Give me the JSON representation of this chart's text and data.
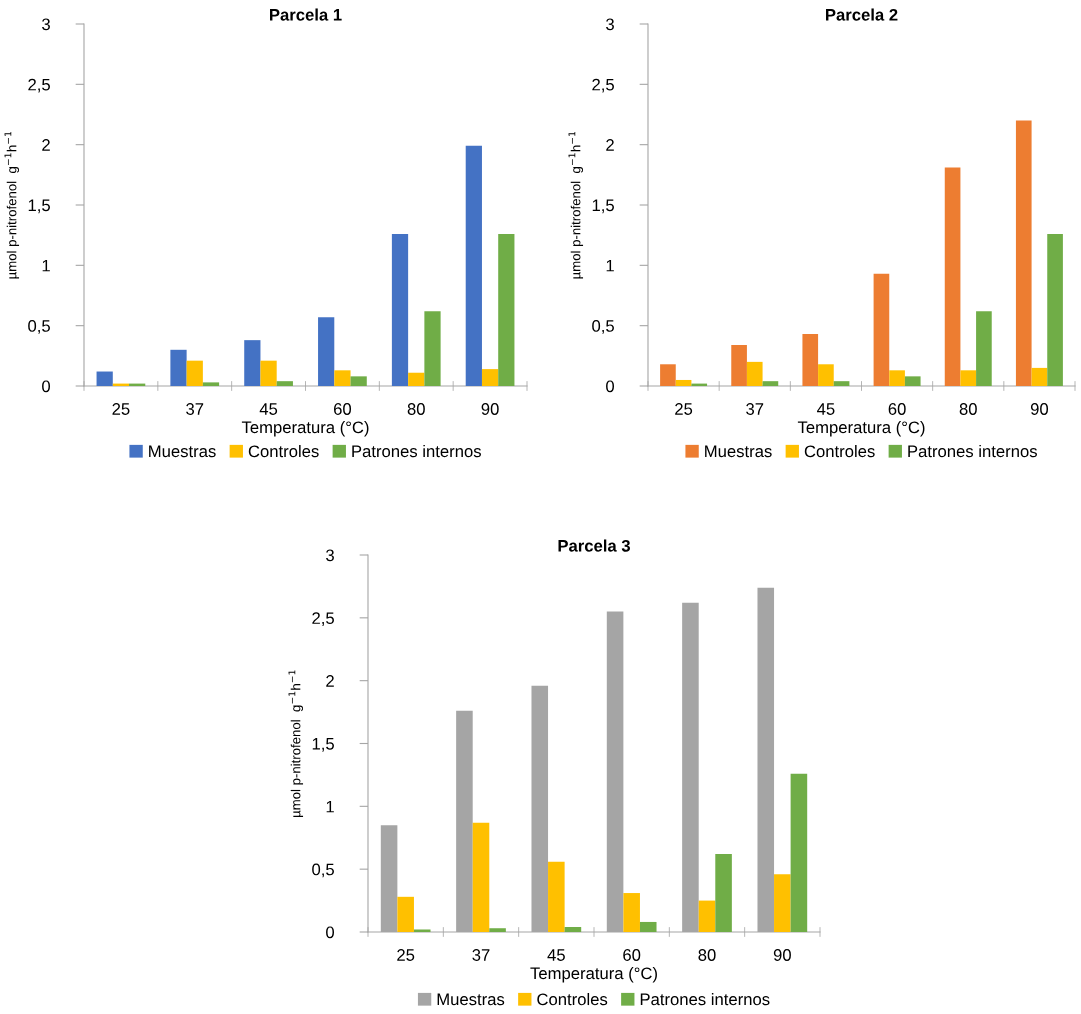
{
  "chart_data": [
    {
      "type": "bar",
      "title": "Parcela 1",
      "xlabel": "Temperatura (°C)",
      "ylabel": "µmol p-nitrofenol  g$^{−1}$h$^{−1}$",
      "categories": [
        "25",
        "37",
        "45",
        "60",
        "80",
        "90"
      ],
      "ylim": [
        0,
        3
      ],
      "yticks": [
        0,
        {
          "value": 0.5,
          "label": "0,5"
        },
        1,
        {
          "value": 1.5,
          "label": "1,5"
        },
        2,
        {
          "value": 2.5,
          "label": "2,5"
        },
        3
      ],
      "grid": false,
      "legend": "bottom",
      "series": [
        {
          "name": "Muestras",
          "color": "#4472c4",
          "values": [
            0.12,
            0.3,
            0.38,
            0.57,
            1.26,
            1.99
          ]
        },
        {
          "name": "Controles",
          "color": "#ffc000",
          "values": [
            0.02,
            0.21,
            0.21,
            0.13,
            0.11,
            0.14
          ]
        },
        {
          "name": "Patrones internos",
          "color": "#70ad47",
          "values": [
            0.02,
            0.03,
            0.04,
            0.08,
            0.62,
            1.26
          ]
        }
      ]
    },
    {
      "type": "bar",
      "title": "Parcela 2",
      "xlabel": "Temperatura (°C)",
      "ylabel": "µmol p-nitrofenol  g$^{−1}$h$^{−1}$",
      "categories": [
        "25",
        "37",
        "45",
        "60",
        "80",
        "90"
      ],
      "ylim": [
        0,
        3
      ],
      "yticks": [
        0,
        {
          "value": 0.5,
          "label": "0,5"
        },
        1,
        {
          "value": 1.5,
          "label": "1,5"
        },
        2,
        {
          "value": 2.5,
          "label": "2,5"
        },
        3
      ],
      "grid": false,
      "legend": "bottom",
      "series": [
        {
          "name": "Muestras",
          "color": "#ed7d31",
          "values": [
            0.18,
            0.34,
            0.43,
            0.93,
            1.81,
            2.2
          ]
        },
        {
          "name": "Controles",
          "color": "#ffc000",
          "values": [
            0.05,
            0.2,
            0.18,
            0.13,
            0.13,
            0.15
          ]
        },
        {
          "name": "Patrones internos",
          "color": "#70ad47",
          "values": [
            0.02,
            0.04,
            0.04,
            0.08,
            0.62,
            1.26
          ]
        }
      ]
    },
    {
      "type": "bar",
      "title": "Parcela 3",
      "xlabel": "Temperatura (°C)",
      "ylabel": "µmol p-nitrofenol  g$^{−1}$h$^{−1}$",
      "categories": [
        "25",
        "37",
        "45",
        "60",
        "80",
        "90"
      ],
      "ylim": [
        0,
        3
      ],
      "yticks": [
        0,
        {
          "value": 0.5,
          "label": "0,5"
        },
        1,
        {
          "value": 1.5,
          "label": "1,5"
        },
        2,
        {
          "value": 2.5,
          "label": "2,5"
        },
        3
      ],
      "grid": false,
      "legend": "bottom",
      "series": [
        {
          "name": "Muestras",
          "color": "#a5a5a5",
          "values": [
            0.85,
            1.76,
            1.96,
            2.55,
            2.62,
            2.74
          ]
        },
        {
          "name": "Controles",
          "color": "#ffc000",
          "values": [
            0.28,
            0.87,
            0.56,
            0.31,
            0.25,
            0.46
          ]
        },
        {
          "name": "Patrones internos",
          "color": "#70ad47",
          "values": [
            0.02,
            0.03,
            0.04,
            0.08,
            0.62,
            1.26
          ]
        }
      ]
    }
  ]
}
